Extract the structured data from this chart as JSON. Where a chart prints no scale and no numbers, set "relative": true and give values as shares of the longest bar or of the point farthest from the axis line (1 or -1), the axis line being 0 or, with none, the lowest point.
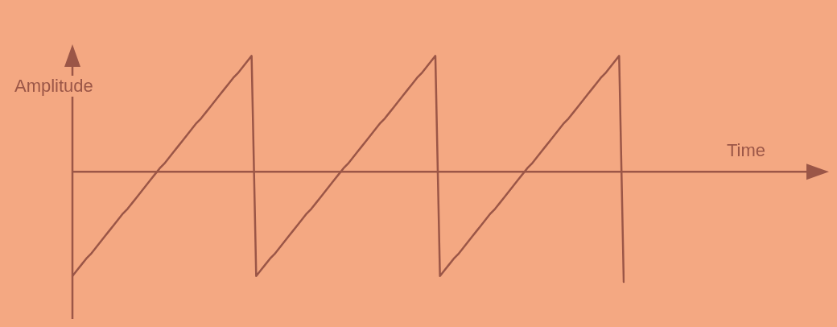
{
  "chart_data": {
    "type": "line",
    "annotations": [
      "Time"
    ],
    "ylabel": "Amplitude",
    "relative": true,
    "tick_labels": false,
    "ref_lines": [
      {
        "axis": "y",
        "value": 0,
        "color": "#9b5647"
      }
    ],
    "categories": [
      null,
      null,
      null,
      null,
      null,
      null,
      null,
      null,
      null,
      null,
      null,
      null,
      null,
      null,
      null,
      null,
      null,
      null,
      null,
      null,
      null,
      null,
      null,
      null,
      null,
      null,
      null,
      null,
      null,
      null,
      null,
      null,
      null,
      null,
      null,
      null,
      null,
      null,
      null,
      null,
      null,
      null,
      null,
      null,
      null,
      null,
      null,
      null,
      null,
      null,
      null,
      null,
      null,
      null,
      null,
      null,
      null,
      null,
      null,
      null,
      null,
      null,
      null,
      null,
      null,
      null,
      null,
      null,
      null,
      null,
      null,
      null,
      null,
      null,
      null,
      null,
      null,
      null,
      null,
      null,
      null,
      null,
      null,
      null,
      null,
      null,
      null,
      null,
      null,
      null,
      null,
      null,
      null,
      null,
      null,
      null,
      null,
      null,
      null,
      null,
      null,
      null,
      null,
      null,
      null,
      null,
      null,
      null,
      null,
      null,
      null,
      null,
      null,
      null,
      null,
      null,
      null,
      null,
      null,
      null,
      null
    ],
    "series": [
      {
        "color": "#9b5647",
        "values": [
          -0.9,
          -0.85,
          -0.8,
          -0.75,
          -0.71,
          -0.66,
          -0.61,
          -0.56,
          -0.51,
          -0.46,
          -0.41,
          -0.36,
          -0.32,
          -0.27,
          -0.22,
          -0.17,
          -0.12,
          -0.07,
          -0.02,
          0.03,
          0.07,
          0.12,
          0.17,
          0.22,
          0.27,
          0.32,
          0.37,
          0.42,
          0.46,
          0.51,
          0.56,
          0.61,
          0.66,
          0.71,
          0.76,
          0.81,
          0.85,
          0.9,
          0.95,
          1,
          -0.9,
          -0.85,
          -0.8,
          -0.75,
          -0.71,
          -0.66,
          -0.61,
          -0.56,
          -0.51,
          -0.46,
          -0.41,
          -0.36,
          -0.32,
          -0.27,
          -0.22,
          -0.17,
          -0.12,
          -0.07,
          -0.02,
          0.03,
          0.07,
          0.12,
          0.17,
          0.22,
          0.27,
          0.32,
          0.37,
          0.42,
          0.46,
          0.51,
          0.56,
          0.61,
          0.66,
          0.71,
          0.76,
          0.81,
          0.85,
          0.9,
          0.95,
          1,
          -0.9,
          -0.85,
          -0.8,
          -0.75,
          -0.71,
          -0.66,
          -0.61,
          -0.56,
          -0.51,
          -0.46,
          -0.41,
          -0.36,
          -0.32,
          -0.27,
          -0.22,
          -0.17,
          -0.12,
          -0.07,
          -0.02,
          0.03,
          0.07,
          0.12,
          0.17,
          0.22,
          0.27,
          0.32,
          0.37,
          0.42,
          0.46,
          0.51,
          0.56,
          0.61,
          0.66,
          0.71,
          0.76,
          0.81,
          0.85,
          0.9,
          0.95,
          1,
          -0.95
        ]
      }
    ]
  }
}
